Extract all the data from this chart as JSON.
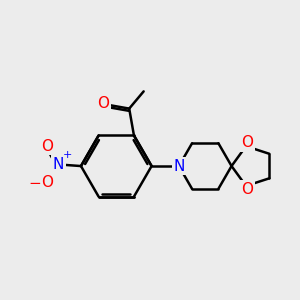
{
  "bg_color": "#ececec",
  "bond_color": "#000000",
  "bond_width": 1.8,
  "atom_colors": {
    "O": "#ff0000",
    "N": "#0000ff",
    "N+": "#0000ff",
    "O-": "#ff0000"
  },
  "font_size": 9,
  "figsize": [
    3.0,
    3.0
  ],
  "dpi": 100
}
